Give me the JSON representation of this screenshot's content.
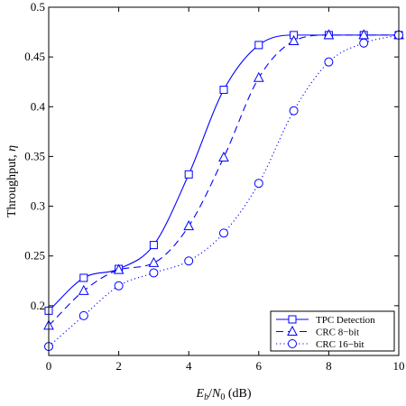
{
  "chart_data": {
    "type": "line",
    "title": "",
    "xlabel": "Eb/N0 (dB)",
    "ylabel": "Throughput, η",
    "xlim": [
      0,
      10
    ],
    "ylim": [
      0.15,
      0.5
    ],
    "xticks": [
      0,
      2,
      4,
      6,
      8,
      10
    ],
    "yticks": [
      0.2,
      0.25,
      0.3,
      0.35,
      0.4,
      0.45,
      0.5
    ],
    "grid": false,
    "legend_position": "bottom-right",
    "colors": {
      "series": "#0000ff",
      "axes": "#000000",
      "background": "#ffffff"
    },
    "series": [
      {
        "name": "TPC Detection",
        "line_style": "solid",
        "marker": "square",
        "x": [
          0,
          1,
          2,
          3,
          4,
          5,
          6,
          7,
          8,
          9,
          10
        ],
        "y": [
          0.195,
          0.228,
          0.237,
          0.261,
          0.332,
          0.417,
          0.462,
          0.472,
          0.472,
          0.472,
          0.472
        ]
      },
      {
        "name": "CRC 8−bit",
        "line_style": "dashed",
        "marker": "triangle",
        "x": [
          0,
          1,
          2,
          3,
          4,
          5,
          6,
          7,
          8,
          9,
          10
        ],
        "y": [
          0.18,
          0.215,
          0.236,
          0.243,
          0.28,
          0.349,
          0.429,
          0.466,
          0.472,
          0.472,
          0.472
        ]
      },
      {
        "name": "CRC 16−bit",
        "line_style": "dotted",
        "marker": "circle",
        "x": [
          0,
          1,
          2,
          3,
          4,
          5,
          6,
          7,
          8,
          9,
          10
        ],
        "y": [
          0.159,
          0.19,
          0.22,
          0.233,
          0.245,
          0.273,
          0.323,
          0.396,
          0.445,
          0.464,
          0.472
        ]
      }
    ]
  }
}
